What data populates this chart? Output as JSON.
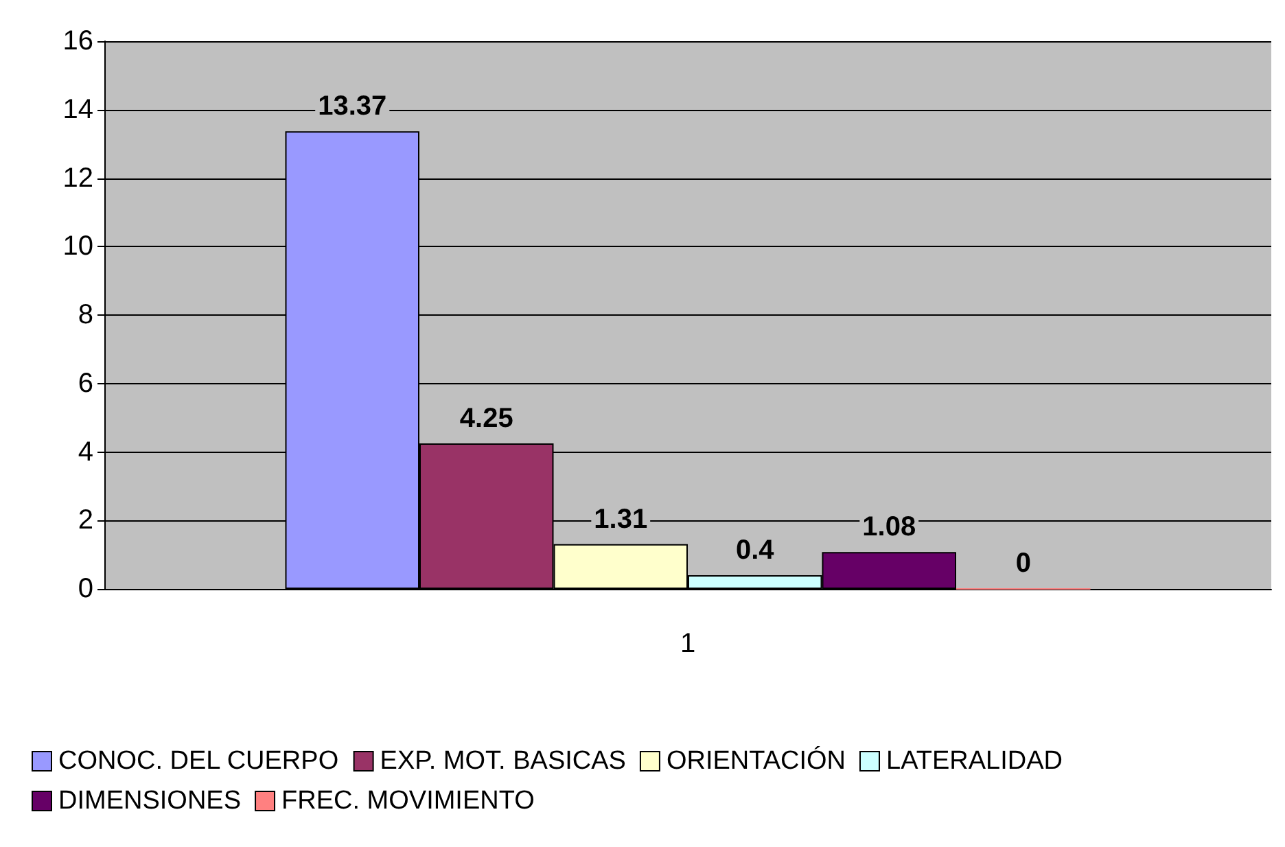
{
  "chart_data": {
    "type": "bar",
    "categories": [
      "1"
    ],
    "series": [
      {
        "name": "CONOC. DEL CUERPO",
        "color": "#9999ff",
        "values": [
          13.37
        ]
      },
      {
        "name": "EXP. MOT. BASICAS",
        "color": "#993366",
        "values": [
          4.25
        ]
      },
      {
        "name": "ORIENTACIÓN",
        "color": "#ffffcc",
        "values": [
          1.31
        ]
      },
      {
        "name": "LATERALIDAD",
        "color": "#ccffff",
        "values": [
          0.4
        ]
      },
      {
        "name": "DIMENSIONES",
        "color": "#660066",
        "values": [
          1.08
        ]
      },
      {
        "name": "FREC. MOVIMIENTO",
        "color": "#ff8080",
        "values": [
          0
        ]
      }
    ],
    "ylim": [
      0,
      16
    ],
    "yticks": [
      0,
      2,
      4,
      6,
      8,
      10,
      12,
      14,
      16
    ],
    "grid": "y",
    "legend": "bottom",
    "data_labels": true
  }
}
